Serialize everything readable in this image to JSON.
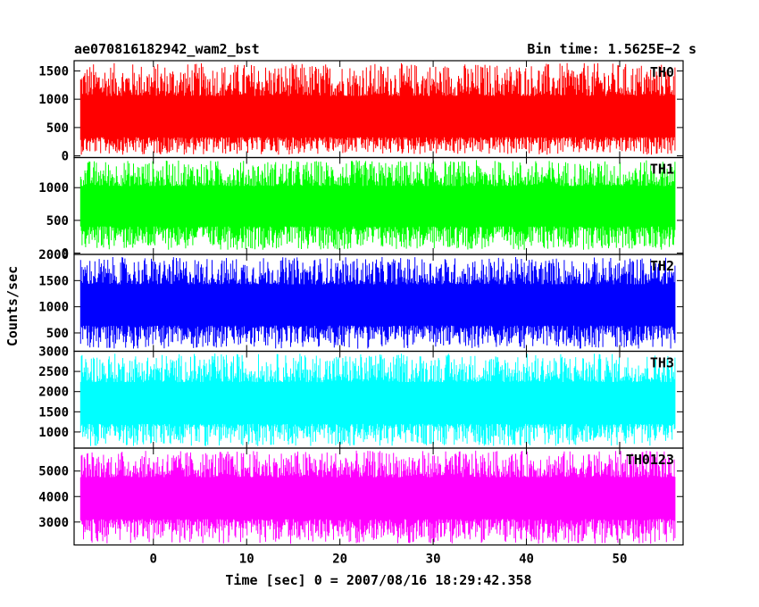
{
  "chart_data": {
    "type": "line",
    "title": "ae070816182942_wam2_bst",
    "subtitle": "Bin time: 1.5625E−2 s",
    "xlabel": "Time [sec] 0 = 2007/08/16 18:29:42.358",
    "ylabel": "Counts/sec",
    "xlim": [
      -8.5,
      56.8
    ],
    "x_ticks": [
      0,
      10,
      20,
      30,
      40,
      50
    ],
    "x_data_range": [
      -7.8,
      56.0
    ],
    "grid": false,
    "panels": [
      {
        "name": "TH0",
        "color": "#ff0000",
        "ylim": [
          -30,
          1680
        ],
        "yticks": [
          0,
          500,
          1000,
          1500
        ],
        "baseline": 580,
        "low": 20,
        "high": 1640
      },
      {
        "name": "TH1",
        "color": "#00ff00",
        "ylim": [
          -20,
          1460
        ],
        "yticks": [
          0,
          500,
          1000
        ],
        "baseline": 700,
        "low": 50,
        "high": 1420
      },
      {
        "name": "TH2",
        "color": "#0000ff",
        "ylim": [
          150,
          2000
        ],
        "yticks": [
          500,
          1000,
          1500,
          2000
        ],
        "baseline": 1000,
        "low": 200,
        "high": 1950
      },
      {
        "name": "TH3",
        "color": "#00ffff",
        "ylim": [
          600,
          3000
        ],
        "yticks": [
          1000,
          1500,
          2000,
          2500,
          3000
        ],
        "baseline": 1650,
        "low": 650,
        "high": 2950
      },
      {
        "name": "TH0123",
        "color": "#ff00ff",
        "ylim": [
          2100,
          5900
        ],
        "yticks": [
          3000,
          4000,
          5000
        ],
        "baseline": 3900,
        "low": 2150,
        "high": 5800
      }
    ]
  }
}
